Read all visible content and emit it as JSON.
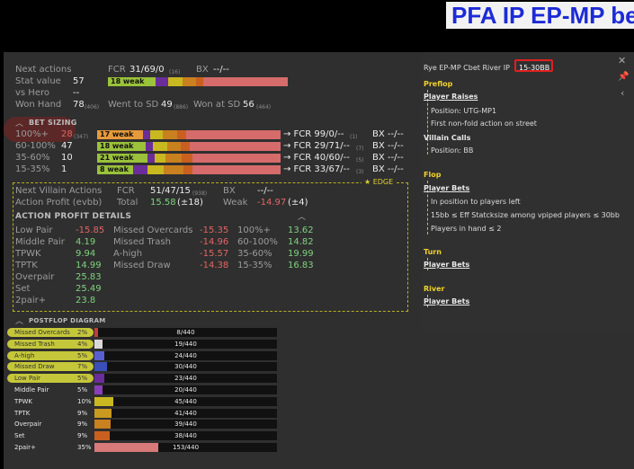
{
  "banner": {
    "title": "PFA IP EP-MP bet"
  },
  "stats": {
    "next_actions_label": "Next actions",
    "fcr_label": "FCR",
    "fcr_value": "31/69/0",
    "fcr_sub": "(16)",
    "bx_label": "BX",
    "bx_value": "--/--",
    "stat_value_label": "Stat value",
    "stat_value": "57",
    "stat_weak": "18 weak",
    "vs_hero_label": "vs Hero",
    "vs_hero_value": "--",
    "won_hand_label": "Won Hand",
    "won_hand_value": "78",
    "won_hand_sub": "(406)",
    "went_sd_label": "Went to SD",
    "went_sd_value": "49",
    "went_sd_sub": "(886)",
    "won_sd_label": "Won at SD",
    "won_sd_value": "56",
    "won_sd_sub": "(464)"
  },
  "bet_sizing": {
    "title": "BET SIZING",
    "rows": [
      {
        "label": "100%+",
        "value": "28",
        "sub": "(347)",
        "weak": "17 weak",
        "fcr": "→ FCR 99/0/--",
        "fcr_sub": "(1)",
        "bx": "BX --/--"
      },
      {
        "label": "60-100%",
        "value": "47",
        "sub": "",
        "weak": "18 weak",
        "fcr": "→ FCR 29/71/--",
        "fcr_sub": "(7)",
        "bx": "BX --/--"
      },
      {
        "label": "35-60%",
        "value": "10",
        "sub": "",
        "weak": "21 weak",
        "fcr": "→ FCR 40/60/--",
        "fcr_sub": "(5)",
        "bx": "BX --/--"
      },
      {
        "label": "15-35%",
        "value": "1",
        "sub": "",
        "weak": "8 weak",
        "fcr": "→ FCR 33/67/--",
        "fcr_sub": "(3)",
        "bx": "BX --/--"
      }
    ]
  },
  "edge": {
    "label": "★ EDGE",
    "next_villain_label": "Next Villain Actions",
    "fcr_label": "FCR",
    "fcr_value": "51/47/15",
    "fcr_sub": "(938)",
    "bx_label": "BX",
    "bx_value": "--/--",
    "action_profit_label": "Action Profit (evbb)",
    "total_label": "Total",
    "total_value": "15.58",
    "total_delta": "(±18)",
    "weak_label": "Weak",
    "weak_value": "-14.97",
    "weak_delta": "(±4)",
    "details_title": "ACTION PROFIT DETAILS",
    "col1": [
      {
        "label": "Low Pair",
        "value": "-15.85"
      },
      {
        "label": "Middle Pair",
        "value": "4.19"
      },
      {
        "label": "TPWK",
        "value": "9.94"
      },
      {
        "label": "TPTK",
        "value": "14.99"
      },
      {
        "label": "Overpair",
        "value": "25.83"
      },
      {
        "label": "Set",
        "value": "25.49"
      },
      {
        "label": "2pair+",
        "value": "23.8"
      }
    ],
    "col2": [
      {
        "label": "Missed Overcards",
        "value": "-15.35"
      },
      {
        "label": "Missed Trash",
        "value": "-14.96"
      },
      {
        "label": "A-high",
        "value": "-15.57"
      },
      {
        "label": "Missed Draw",
        "value": "-14.38"
      }
    ],
    "col3": [
      {
        "label": "100%+",
        "value": "13.62"
      },
      {
        "label": "60-100%",
        "value": "14.82"
      },
      {
        "label": "35-60%",
        "value": "19.99"
      },
      {
        "label": "15-35%",
        "value": "16.83"
      }
    ]
  },
  "postflop": {
    "title": "POSTFLOP DIAGRAM",
    "rows": [
      {
        "label": "Missed Overcards",
        "pct": "2%",
        "count": "8/440",
        "fraction": 0.018,
        "color": "#c43b3b",
        "highlighted": true
      },
      {
        "label": "Missed Trash",
        "pct": "4%",
        "count": "19/440",
        "fraction": 0.043,
        "color": "#d8d8d8",
        "highlighted": true
      },
      {
        "label": "A-high",
        "pct": "5%",
        "count": "24/440",
        "fraction": 0.055,
        "color": "#5a5fd0",
        "highlighted": true
      },
      {
        "label": "Missed Draw",
        "pct": "7%",
        "count": "30/440",
        "fraction": 0.068,
        "color": "#3a4fb8",
        "highlighted": true
      },
      {
        "label": "Low Pair",
        "pct": "5%",
        "count": "23/440",
        "fraction": 0.052,
        "color": "#6a2d9a",
        "highlighted": true
      },
      {
        "label": "Middle Pair",
        "pct": "5%",
        "count": "20/440",
        "fraction": 0.045,
        "color": "#8a3fb8",
        "highlighted": false
      },
      {
        "label": "TPWK",
        "pct": "10%",
        "count": "45/440",
        "fraction": 0.102,
        "color": "#c9b81f",
        "highlighted": false
      },
      {
        "label": "TPTK",
        "pct": "9%",
        "count": "41/440",
        "fraction": 0.093,
        "color": "#c99a1f",
        "highlighted": false
      },
      {
        "label": "Overpair",
        "pct": "9%",
        "count": "39/440",
        "fraction": 0.089,
        "color": "#c9801f",
        "highlighted": false
      },
      {
        "label": "Set",
        "pct": "9%",
        "count": "38/440",
        "fraction": 0.086,
        "color": "#c9601f",
        "highlighted": false
      },
      {
        "label": "2pair+",
        "pct": "35%",
        "count": "153/440",
        "fraction": 0.348,
        "color": "#d87a7a",
        "highlighted": false
      }
    ]
  },
  "right_panel": {
    "title": "Rye EP-MP Cbet River IP",
    "stack_range": "15-30BB",
    "preflop": "Preflop",
    "player_raises": "Player Raises",
    "position_utg": "Position: UTG-MP1",
    "first_nonfold": "First non-fold action on street",
    "villain_calls": "Villain Calls",
    "position_bb": "Position: BB",
    "flop": "Flop",
    "player_bets_flop": "Player Bets",
    "in_position": "In position to players left",
    "stacksize": "15bb ≤ Eff Statcksize among vpiped players ≤ 30bb",
    "players_in_hand": "Players in hand ≤ 2",
    "turn": "Turn",
    "player_bets_turn": "Player Bets",
    "river": "River",
    "player_bets_river": "Player Bets"
  },
  "icons": {
    "close": "close-icon",
    "pin": "pin-icon",
    "collapse": "chevron-left-icon"
  }
}
